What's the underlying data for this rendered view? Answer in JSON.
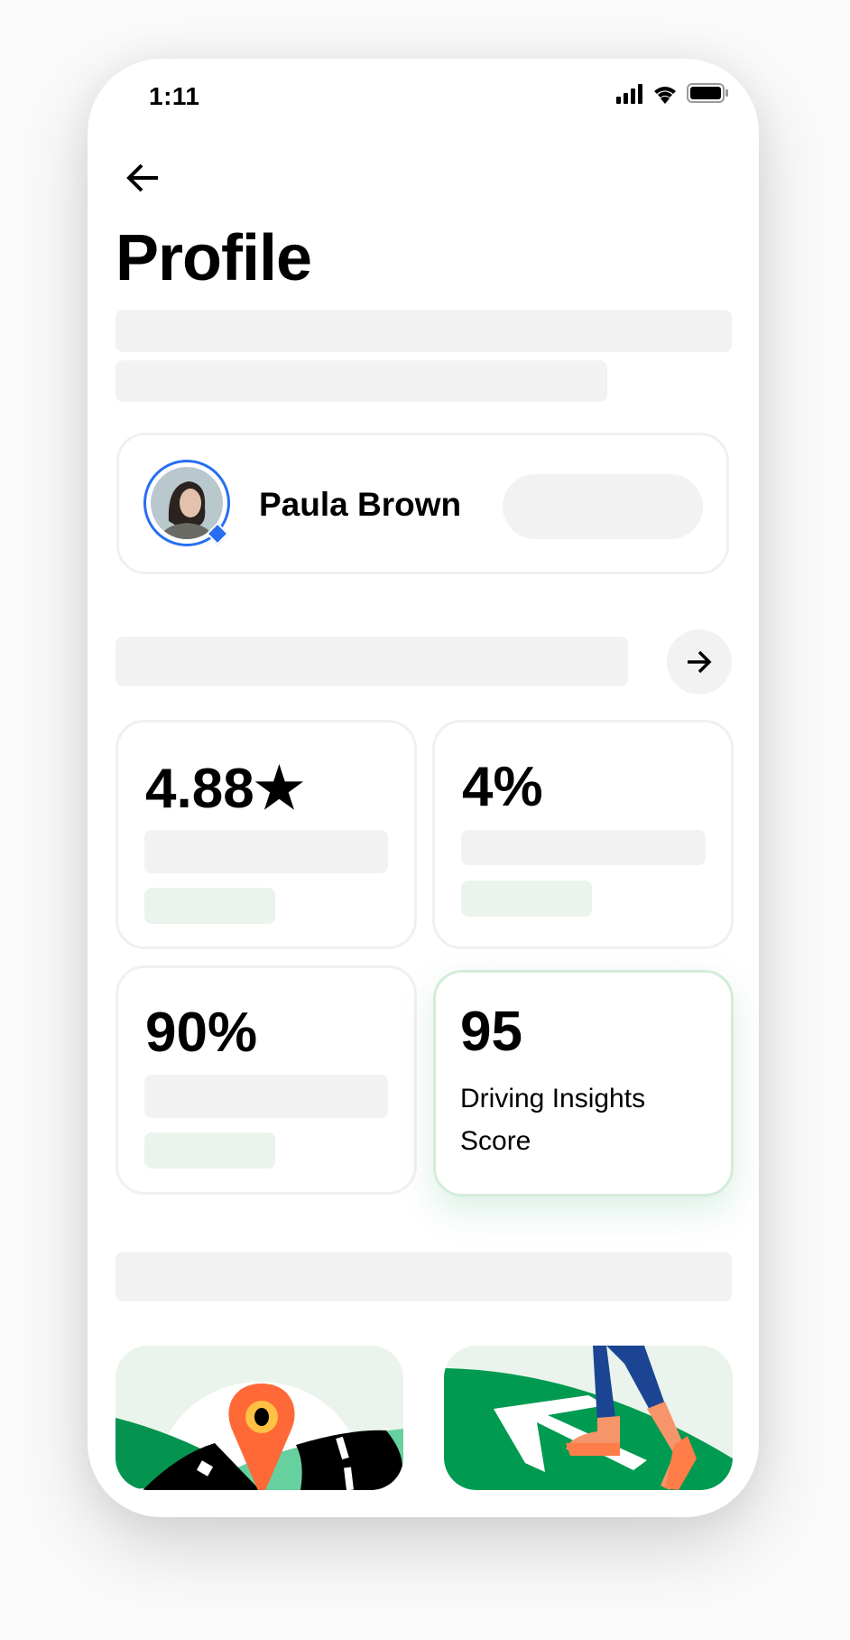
{
  "status_bar": {
    "time": "1:11",
    "icons": [
      "signal-icon",
      "wifi-icon",
      "battery-icon"
    ]
  },
  "header": {
    "back_icon": "arrow-left-icon",
    "title": "Profile"
  },
  "profile_card": {
    "name": "Paula Brown",
    "avatar_ring_color": "#276ef1",
    "badge_icon": "diamond-icon"
  },
  "section_arrow_icon": "arrow-right-icon",
  "stats": [
    {
      "value": "4.88★"
    },
    {
      "value": "4%"
    },
    {
      "value": "90%"
    },
    {
      "value": "95",
      "label": "Driving Insights Score"
    }
  ],
  "colors": {
    "accent_green": "#05944f",
    "skeleton": "#f2f2f2",
    "skeleton_green": "#eaf4ec",
    "pin_orange": "#ff6937"
  }
}
